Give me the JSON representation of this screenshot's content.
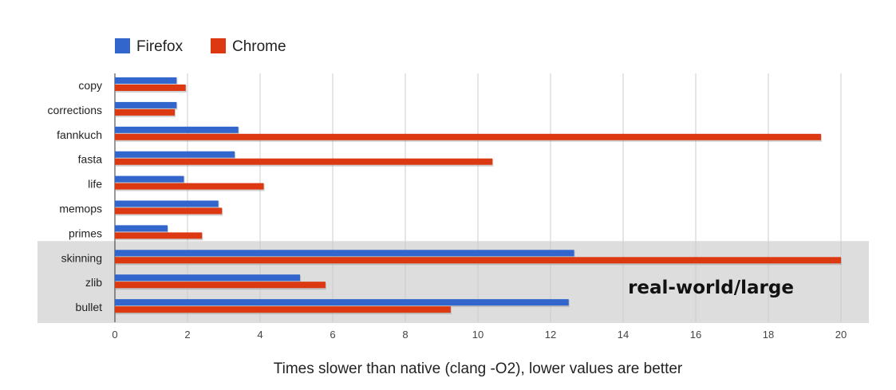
{
  "chart_data": {
    "type": "bar",
    "orientation": "horizontal",
    "categories": [
      "copy",
      "corrections",
      "fannkuch",
      "fasta",
      "life",
      "memops",
      "primes",
      "skinning",
      "zlib",
      "bullet"
    ],
    "series": [
      {
        "name": "Firefox",
        "color": "#3366cc",
        "values": [
          1.7,
          1.7,
          3.4,
          3.3,
          1.9,
          2.85,
          1.45,
          12.65,
          5.1,
          12.5
        ]
      },
      {
        "name": "Chrome",
        "color": "#dc3912",
        "values": [
          1.95,
          1.65,
          19.45,
          10.4,
          4.1,
          2.95,
          2.4,
          20.0,
          5.8,
          9.25
        ]
      }
    ],
    "xlabel": "Times slower than native (clang -O2), lower values are better",
    "xlim": [
      0,
      20
    ],
    "xticks": [
      0,
      2,
      4,
      6,
      8,
      10,
      12,
      14,
      16,
      18,
      20
    ],
    "grid": true,
    "legend_position": "top-left",
    "highlight": {
      "categories": [
        "skinning",
        "zlib",
        "bullet"
      ],
      "label": "real-world/large",
      "color": "#dddddd"
    }
  }
}
